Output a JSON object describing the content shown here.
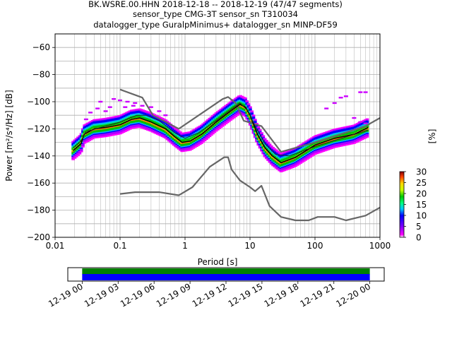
{
  "chart_data": [
    {
      "type": "heatmap",
      "title_lines": [
        "BK.WSRE.00.HHN   2018-12-18 -- 2018-12-19  (47/47 segments)",
        "sensor_type CMG-3T sensor_sn T310034",
        "datalogger_type GuralpMinimus+ datalogger_sn MINP-DF59"
      ],
      "xlabel": "Period [s]",
      "ylabel": "Power [m²/s⁴/Hz] [dB]",
      "xscale": "log",
      "xlim": [
        0.01,
        1000
      ],
      "ylim": [
        -200,
        -50
      ],
      "grid": true,
      "x_ticks": [
        {
          "v": 0.01,
          "label": "0.01"
        },
        {
          "v": 0.1,
          "label": "0.1"
        },
        {
          "v": 1,
          "label": "1"
        },
        {
          "v": 10,
          "label": "10"
        },
        {
          "v": 100,
          "label": "100"
        },
        {
          "v": 1000,
          "label": "1000"
        }
      ],
      "y_ticks": [
        {
          "v": -200,
          "label": "−200"
        },
        {
          "v": -180,
          "label": "−180"
        },
        {
          "v": -160,
          "label": "−160"
        },
        {
          "v": -140,
          "label": "−140"
        },
        {
          "v": -120,
          "label": "−120"
        },
        {
          "v": -100,
          "label": "−100"
        },
        {
          "v": -80,
          "label": "−80"
        },
        {
          "v": -60,
          "label": "−60"
        }
      ],
      "colorbar": {
        "label": "[%]",
        "range": [
          0,
          30
        ],
        "ticks": [
          {
            "v": 0,
            "label": "0"
          },
          {
            "v": 5,
            "label": "5"
          },
          {
            "v": 10,
            "label": "10"
          },
          {
            "v": 15,
            "label": "15"
          },
          {
            "v": 20,
            "label": "20"
          },
          {
            "v": 25,
            "label": "25"
          },
          {
            "v": 30,
            "label": "30"
          }
        ]
      },
      "series": [
        {
          "role": "high noise model",
          "color": "#666666",
          "points": [
            [
              0.1,
              -91
            ],
            [
              0.22,
              -97
            ],
            [
              0.32,
              -110
            ],
            [
              0.8,
              -120
            ],
            [
              3.8,
              -98
            ],
            [
              4.6,
              -96.5
            ],
            [
              6,
              -101
            ],
            [
              8,
              -114
            ],
            [
              15,
              -118
            ],
            [
              30,
              -137
            ],
            [
              100,
              -130
            ],
            [
              600,
              -118
            ],
            [
              1000,
              -112
            ]
          ]
        },
        {
          "role": "low noise model",
          "color": "#666666",
          "points": [
            [
              0.1,
              -168
            ],
            [
              0.17,
              -166.7
            ],
            [
              0.4,
              -166.7
            ],
            [
              0.8,
              -169
            ],
            [
              1.3,
              -163
            ],
            [
              2.4,
              -148
            ],
            [
              4,
              -141
            ],
            [
              4.6,
              -141
            ],
            [
              5.2,
              -150
            ],
            [
              7,
              -158
            ],
            [
              10,
              -163
            ],
            [
              12,
              -166
            ],
            [
              15,
              -162
            ],
            [
              20,
              -177
            ],
            [
              30,
              -185
            ],
            [
              50,
              -187.5
            ],
            [
              80,
              -187.5
            ],
            [
              110,
              -185
            ],
            [
              200,
              -185
            ],
            [
              300,
              -187.5
            ],
            [
              600,
              -184
            ],
            [
              1000,
              -178
            ]
          ]
        },
        {
          "role": "mode",
          "color": "#000000",
          "points": [
            [
              0.019,
              -136
            ],
            [
              0.025,
              -131
            ],
            [
              0.028,
              -124
            ],
            [
              0.04,
              -120
            ],
            [
              0.06,
              -119
            ],
            [
              0.1,
              -117
            ],
            [
              0.15,
              -113
            ],
            [
              0.2,
              -112
            ],
            [
              0.3,
              -115
            ],
            [
              0.5,
              -120
            ],
            [
              0.7,
              -126
            ],
            [
              0.9,
              -130
            ],
            [
              1.2,
              -129
            ],
            [
              1.8,
              -124
            ],
            [
              3,
              -115
            ],
            [
              5,
              -107
            ],
            [
              7,
              -102
            ],
            [
              8.5,
              -104
            ],
            [
              10,
              -110
            ],
            [
              13,
              -124
            ],
            [
              17,
              -134
            ],
            [
              22,
              -140
            ],
            [
              30,
              -145
            ],
            [
              50,
              -141
            ],
            [
              100,
              -132
            ],
            [
              200,
              -127
            ],
            [
              400,
              -124
            ],
            [
              660,
              -119
            ]
          ]
        },
        {
          "role": "mean",
          "color": "#222222",
          "points": [
            [
              0.019,
              -134
            ],
            [
              0.025,
              -129
            ],
            [
              0.03,
              -122
            ],
            [
              0.06,
              -118
            ],
            [
              0.1,
              -115
            ],
            [
              0.18,
              -110
            ],
            [
              0.25,
              -110
            ],
            [
              0.4,
              -114
            ],
            [
              0.7,
              -123
            ],
            [
              1,
              -127
            ],
            [
              1.6,
              -123
            ],
            [
              3,
              -114
            ],
            [
              5,
              -106
            ],
            [
              7,
              -101
            ],
            [
              9,
              -106
            ],
            [
              12,
              -118
            ],
            [
              17,
              -131
            ],
            [
              25,
              -139
            ],
            [
              40,
              -140
            ],
            [
              100,
              -133
            ],
            [
              300,
              -126
            ],
            [
              660,
              -121
            ]
          ]
        }
      ],
      "scatter": {
        "role": "noise PSD outlier cells",
        "points": [
          [
            0.05,
            -100
          ],
          [
            0.08,
            -98
          ],
          [
            0.1,
            -99
          ],
          [
            0.13,
            -100
          ],
          [
            0.17,
            -101
          ],
          [
            0.12,
            -104
          ],
          [
            0.16,
            -103
          ],
          [
            0.22,
            -103
          ],
          [
            0.3,
            -104
          ],
          [
            0.4,
            -107
          ],
          [
            0.5,
            -110
          ],
          [
            0.03,
            -113
          ],
          [
            0.035,
            -108
          ],
          [
            0.045,
            -105
          ],
          [
            0.06,
            -107
          ],
          [
            0.07,
            -104
          ],
          [
            150,
            -105
          ],
          [
            200,
            -101
          ],
          [
            250,
            -97
          ],
          [
            300,
            -96
          ],
          [
            500,
            -93
          ],
          [
            600,
            -93
          ],
          [
            400,
            -112
          ],
          [
            500,
            -115
          ],
          [
            600,
            -116
          ]
        ]
      }
    },
    {
      "type": "timeline",
      "x_ticks": [
        "12-19 00",
        "12-19 03",
        "12-19 06",
        "12-19 09",
        "12-19 12",
        "12-19 15",
        "12-19 18",
        "12-19 21",
        "12-20 00"
      ],
      "tick_hours": [
        0,
        3,
        6,
        9,
        12,
        15,
        18,
        21,
        24
      ],
      "xlim_hours": [
        -1.2,
        25.2
      ],
      "bars": [
        {
          "color": "#008000",
          "start_hours": 0,
          "end_hours": 24
        },
        {
          "color": "#0000ff",
          "start_hours": 0,
          "end_hours": 24
        }
      ]
    }
  ]
}
